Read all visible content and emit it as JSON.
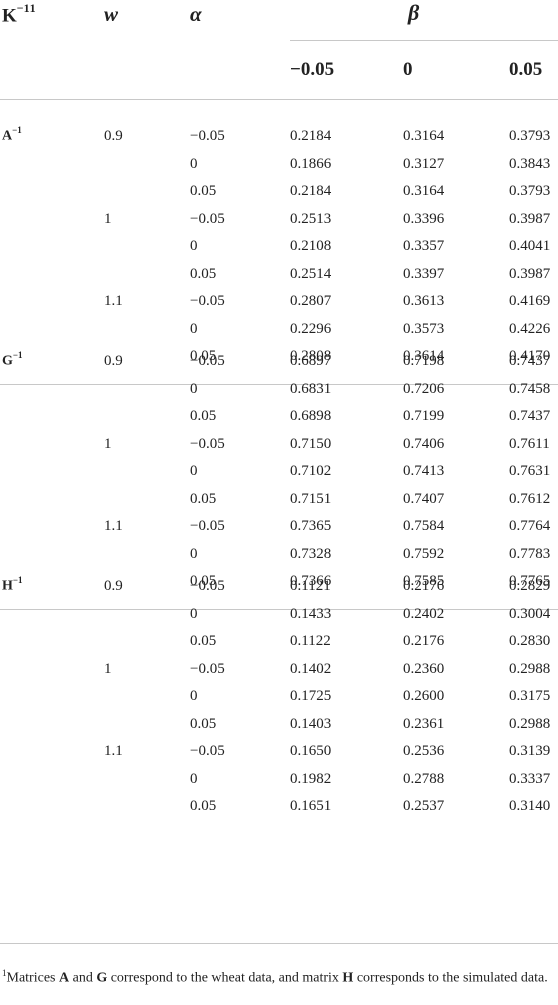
{
  "header": {
    "k_label": "K",
    "k_sup": "−1",
    "k_note": "1",
    "w_label": "w",
    "alpha_label": "α",
    "beta_label": "β",
    "beta_values": [
      "−0.05",
      "0",
      "0.05"
    ]
  },
  "groups": [
    {
      "label": "A",
      "label_sup": "−1",
      "blocks": [
        {
          "w": "0.9",
          "rows": [
            {
              "alpha": "−0.05",
              "values": [
                "0.2184",
                "0.3164",
                "0.3793"
              ]
            },
            {
              "alpha": "0",
              "values": [
                "0.1866",
                "0.3127",
                "0.3843"
              ]
            },
            {
              "alpha": "0.05",
              "values": [
                "0.2184",
                "0.3164",
                "0.3793"
              ]
            }
          ]
        },
        {
          "w": "1",
          "rows": [
            {
              "alpha": "−0.05",
              "values": [
                "0.2513",
                "0.3396",
                "0.3987"
              ]
            },
            {
              "alpha": "0",
              "values": [
                "0.2108",
                "0.3357",
                "0.4041"
              ]
            },
            {
              "alpha": "0.05",
              "values": [
                "0.2514",
                "0.3397",
                "0.3987"
              ]
            }
          ]
        },
        {
          "w": "1.1",
          "rows": [
            {
              "alpha": "−0.05",
              "values": [
                "0.2807",
                "0.3613",
                "0.4169"
              ]
            },
            {
              "alpha": "0",
              "values": [
                "0.2296",
                "0.3573",
                "0.4226"
              ]
            },
            {
              "alpha": "0.05",
              "values": [
                "0.2808",
                "0.3614",
                "0.4170"
              ]
            }
          ]
        }
      ]
    },
    {
      "label": "G",
      "label_sup": "−1",
      "blocks": [
        {
          "w": "0.9",
          "rows": [
            {
              "alpha": "−0.05",
              "values": [
                "0.6897",
                "0.7198",
                "0.7437"
              ]
            },
            {
              "alpha": "0",
              "values": [
                "0.6831",
                "0.7206",
                "0.7458"
              ]
            },
            {
              "alpha": "0.05",
              "values": [
                "0.6898",
                "0.7199",
                "0.7437"
              ]
            }
          ]
        },
        {
          "w": "1",
          "rows": [
            {
              "alpha": "−0.05",
              "values": [
                "0.7150",
                "0.7406",
                "0.7611"
              ]
            },
            {
              "alpha": "0",
              "values": [
                "0.7102",
                "0.7413",
                "0.7631"
              ]
            },
            {
              "alpha": "0.05",
              "values": [
                "0.7151",
                "0.7407",
                "0.7612"
              ]
            }
          ]
        },
        {
          "w": "1.1",
          "rows": [
            {
              "alpha": "−0.05",
              "values": [
                "0.7365",
                "0.7584",
                "0.7764"
              ]
            },
            {
              "alpha": "0",
              "values": [
                "0.7328",
                "0.7592",
                "0.7783"
              ]
            },
            {
              "alpha": "0.05",
              "values": [
                "0.7366",
                "0.7585",
                "0.7765"
              ]
            }
          ]
        }
      ]
    },
    {
      "label": "H",
      "label_sup": "−1",
      "blocks": [
        {
          "w": "0.9",
          "rows": [
            {
              "alpha": "−0.05",
              "values": [
                "0.1121",
                "0.2176",
                "0.2829"
              ]
            },
            {
              "alpha": "0",
              "values": [
                "0.1433",
                "0.2402",
                "0.3004"
              ]
            },
            {
              "alpha": "0.05",
              "values": [
                "0.1122",
                "0.2176",
                "0.2830"
              ]
            }
          ]
        },
        {
          "w": "1",
          "rows": [
            {
              "alpha": "−0.05",
              "values": [
                "0.1402",
                "0.2360",
                "0.2988"
              ]
            },
            {
              "alpha": "0",
              "values": [
                "0.1725",
                "0.2600",
                "0.3175"
              ]
            },
            {
              "alpha": "0.05",
              "values": [
                "0.1403",
                "0.2361",
                "0.2988"
              ]
            }
          ]
        },
        {
          "w": "1.1",
          "rows": [
            {
              "alpha": "−0.05",
              "values": [
                "0.1650",
                "0.2536",
                "0.3139"
              ]
            },
            {
              "alpha": "0",
              "values": [
                "0.1982",
                "0.2788",
                "0.3337"
              ]
            },
            {
              "alpha": "0.05",
              "values": [
                "0.1651",
                "0.2537",
                "0.3140"
              ]
            }
          ]
        }
      ]
    }
  ],
  "footnote": {
    "marker": "1",
    "parts": [
      "Matrices ",
      "A",
      " and ",
      "G",
      " correspond to the wheat data, and matrix ",
      "H",
      " corresponds to the simulated data."
    ]
  }
}
